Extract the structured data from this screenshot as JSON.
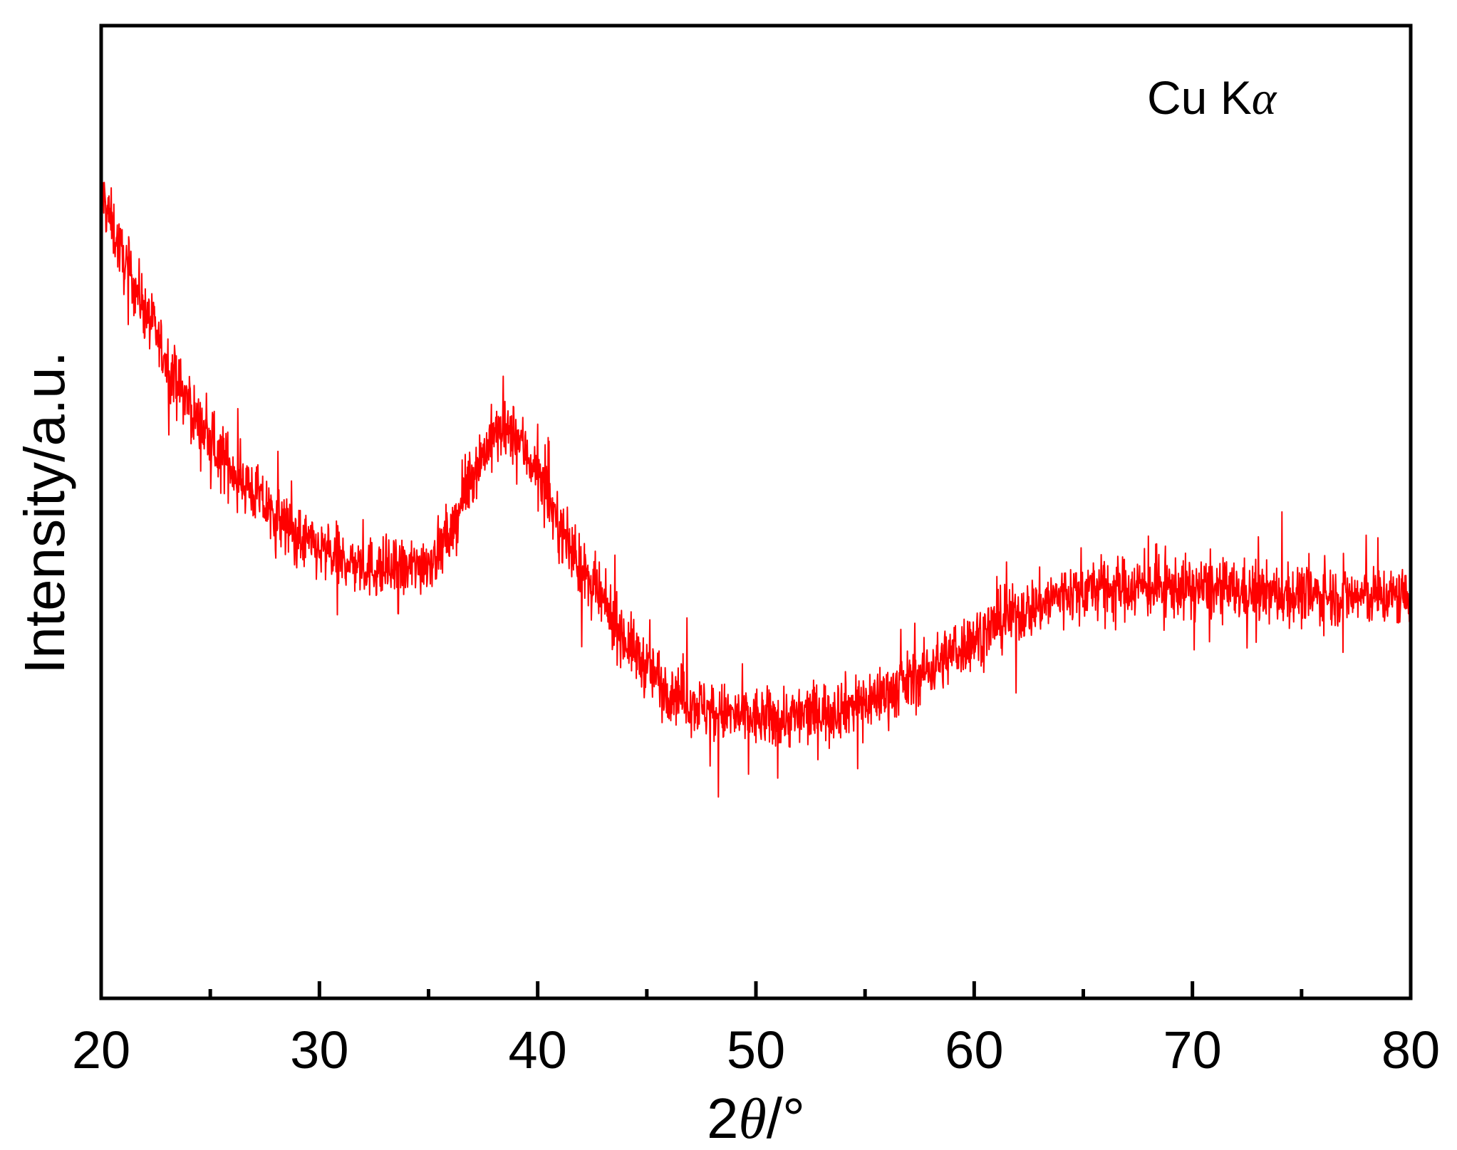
{
  "chart_data": {
    "type": "line",
    "title": "",
    "xlabel": {
      "prefix": "2",
      "symbol": "θ",
      "suffix": "/°"
    },
    "ylabel": "Intensity/a.u.",
    "annotation": {
      "text": "Cu K",
      "symbol": "α"
    },
    "xlim": [
      20,
      80
    ],
    "ylim": [
      0,
      100
    ],
    "y_tick_labels_shown": false,
    "grid": false,
    "x_ticks": [
      20,
      30,
      40,
      50,
      60,
      70,
      80
    ],
    "x_ticks_labels": [
      "20",
      "30",
      "40",
      "50",
      "60",
      "70",
      "80"
    ],
    "x_minor_ticks": [
      25,
      35,
      45,
      55,
      65,
      75
    ],
    "series": [
      {
        "color": "#ff0000",
        "noise_amplitude": 3.2,
        "x": [
          20,
          21,
          22,
          23,
          24,
          25,
          26,
          27,
          28,
          29,
          30,
          31,
          32,
          33,
          34,
          35,
          36,
          37,
          38,
          39,
          40,
          41,
          42,
          43,
          44,
          45,
          46,
          47,
          48,
          49,
          50,
          51,
          52,
          53,
          54,
          55,
          56,
          57,
          58,
          59,
          60,
          61,
          62,
          63,
          64,
          65,
          66,
          67,
          68,
          69,
          70,
          71,
          72,
          73,
          74,
          75,
          76,
          77,
          78,
          79,
          80
        ],
        "y": [
          83,
          76,
          71,
          65.5,
          61,
          57,
          54.5,
          52,
          49.5,
          47.5,
          46,
          45,
          44.5,
          44,
          44,
          45,
          47.5,
          54,
          58,
          58,
          54,
          48.5,
          44,
          40.5,
          37,
          34,
          32,
          30.5,
          29.5,
          29,
          28.8,
          28.7,
          29,
          29.5,
          30,
          30.5,
          31.5,
          32.5,
          34,
          35.5,
          37,
          38.5,
          39.5,
          40.5,
          41.5,
          42,
          42.2,
          42.3,
          42.3,
          42.2,
          42.2,
          42,
          41.8,
          41.7,
          41.5,
          41.5,
          41.4,
          41.4,
          41.3,
          41.3,
          41.3
        ]
      }
    ]
  }
}
